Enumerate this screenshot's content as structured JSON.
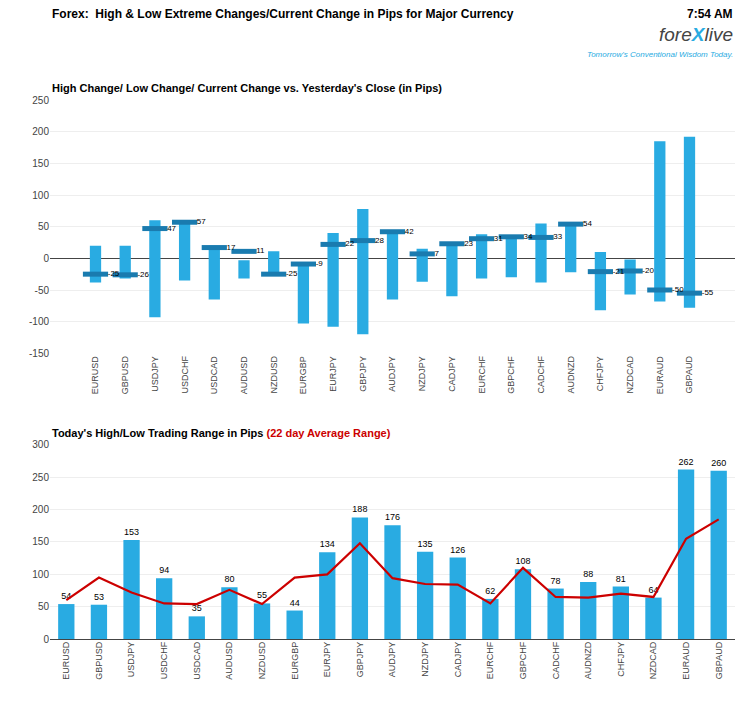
{
  "chart_data": [
    {
      "type": "bar",
      "title": "High Change/ Low Change/ Current Change vs. Yesterday's Close (in Pips)",
      "annotations": [
        {
          "text": "Forex:  High & Low Extreme Changes/Current Change in Pips for Major Currency"
        },
        {
          "text": "7:54 AM"
        },
        {
          "text": "fore",
          "color": "#444444"
        },
        {
          "text": "X",
          "color": "#29ABE2"
        },
        {
          "text": "live",
          "color": "#444444"
        },
        {
          "text": "Tomorrow's Conventional Wisdom Today.",
          "color": "#29ABE2"
        }
      ],
      "categories": [
        "EURUSD",
        "GBPUSD",
        "USDJPY",
        "USDCHF",
        "USDCAD",
        "AUDUSD",
        "NZDUSD",
        "EURGBP",
        "EURJPY",
        "GBPJPY",
        "AUDJPY",
        "NZDJPY",
        "CADJPY",
        "EURCHF",
        "GBPCHF",
        "CADCHF",
        "AUDNZD",
        "CHFJPY",
        "NZDCAD",
        "EURAUD",
        "GBPAUD"
      ],
      "series": [
        {
          "type": "range_bar",
          "color": "#29ABE2",
          "low": [
            -38,
            -32,
            -93,
            -35,
            -65,
            -32,
            -28,
            -103,
            -108,
            -120,
            -65,
            -37,
            -60,
            -32,
            -30,
            -38,
            -22,
            -82,
            -57,
            -68,
            -78
          ],
          "high": [
            20,
            20,
            60,
            57,
            20,
            -3,
            11,
            -8,
            40,
            78,
            42,
            15,
            23,
            38,
            34,
            55,
            54,
            10,
            -2,
            185,
            192
          ]
        },
        {
          "type": "scatter",
          "marker": "line-ew",
          "color": "#1A7BAF",
          "data_labels": true,
          "values": [
            -25,
            -26,
            47,
            57,
            17,
            11,
            -25,
            -9,
            22,
            28,
            42,
            7,
            23,
            31,
            34,
            33,
            54,
            -21,
            -20,
            -50,
            -55
          ]
        }
      ],
      "ylim": [
        -150,
        250
      ],
      "yticks": [
        -150,
        -100,
        -50,
        0,
        50,
        100,
        150,
        200,
        250
      ],
      "grid": true
    },
    {
      "type": "bar",
      "title": "Today's High/Low Trading Range in Pips ",
      "categories": [
        "EURUSD",
        "GBPUSD",
        "USDJPY",
        "USDCHF",
        "USDCAD",
        "AUDUSD",
        "NZDUSD",
        "EURGBP",
        "EURJPY",
        "GBPJPY",
        "AUDJPY",
        "NZDJPY",
        "CADJPY",
        "EURCHF",
        "GBPCHF",
        "CADCHF",
        "AUDNZD",
        "CHFJPY",
        "NZDCAD",
        "EURAUD",
        "GBPAUD"
      ],
      "series": [
        {
          "type": "bar",
          "color": "#29ABE2",
          "data_labels": true,
          "values": [
            54,
            53,
            153,
            94,
            35,
            80,
            55,
            44,
            134,
            188,
            176,
            135,
            126,
            62,
            108,
            78,
            88,
            81,
            64,
            262,
            260
          ]
        },
        {
          "type": "line",
          "name": "(22 day Average Range)",
          "color": "#CC0000",
          "values": [
            60,
            95,
            72,
            55,
            54,
            76,
            54,
            95,
            100,
            148,
            94,
            85,
            84,
            55,
            110,
            65,
            64,
            70,
            65,
            155,
            185
          ]
        }
      ],
      "ylim": [
        0,
        300
      ],
      "yticks": [
        0,
        50,
        100,
        150,
        200,
        250,
        300
      ],
      "grid": true
    }
  ]
}
